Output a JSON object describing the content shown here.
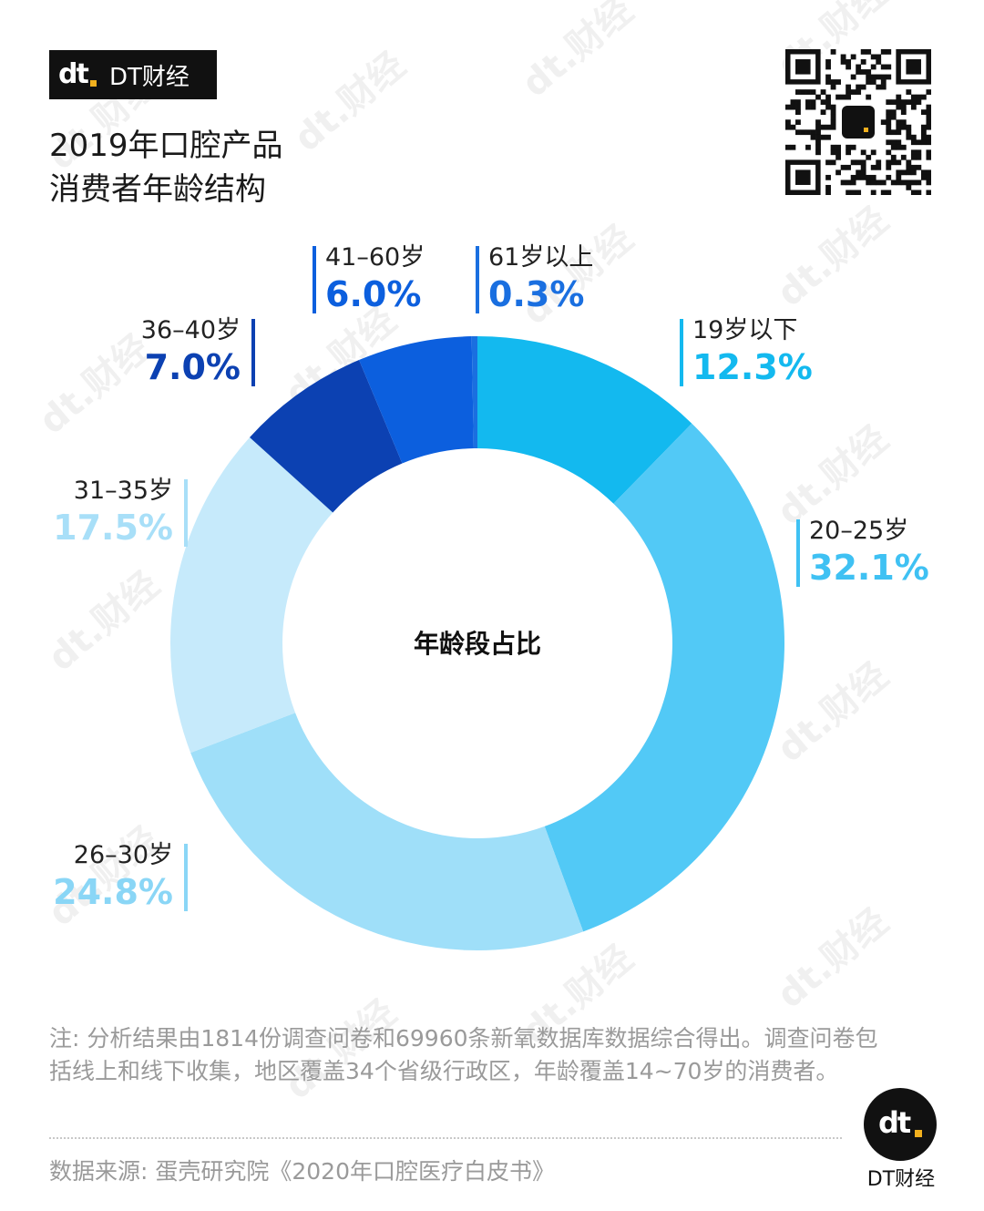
{
  "brand": {
    "name": "DT财经",
    "logo_mark": "dt"
  },
  "title": {
    "line1": "2019年口腔产品",
    "line2": "消费者年龄结构"
  },
  "watermark_text": "dt.财经",
  "colors": {
    "label_dark": "#222222",
    "bar_19": "#13b9ef",
    "bar_20": "#52c9f6",
    "bar_26": "#9fdff9",
    "bar_31": "#c6eafb",
    "bar_36": "#0c41b2",
    "bar_41": "#0c5fde",
    "bar_61": "#1a6fe0"
  },
  "chart_data": {
    "type": "pie",
    "variant": "donut",
    "center_label": "年龄段占比",
    "slices": [
      {
        "label": "19岁以下",
        "value": 12.3,
        "display": "12.3%",
        "color": "#13b9ef",
        "text_color": "#13b9ef"
      },
      {
        "label": "20–25岁",
        "value": 32.1,
        "display": "32.1%",
        "color": "#52c9f6",
        "text_color": "#3fc1f3"
      },
      {
        "label": "26–30岁",
        "value": 24.8,
        "display": "24.8%",
        "color": "#9fdff9",
        "text_color": "#8ad6f6"
      },
      {
        "label": "31–35岁",
        "value": 17.5,
        "display": "17.5%",
        "color": "#c6eafb",
        "text_color": "#a8dff8"
      },
      {
        "label": "36–40岁",
        "value": 7.0,
        "display": "7.0%",
        "color": "#0c41b2",
        "text_color": "#0c41b2"
      },
      {
        "label": "41–60岁",
        "value": 6.0,
        "display": "6.0%",
        "color": "#0c5fde",
        "text_color": "#0c5fde"
      },
      {
        "label": "61岁以上",
        "value": 0.3,
        "display": "0.3%",
        "color": "#1a6fe0",
        "text_color": "#1a6fe0"
      }
    ]
  },
  "note": "注: 分析结果由1814份调查问卷和69960条新氧数据库数据综合得出。调查问卷包括线上和线下收集，地区覆盖34个省级行政区，年龄覆盖14~70岁的消费者。",
  "source": "数据来源: 蛋壳研究院《2020年口腔医疗白皮书》",
  "badge": {
    "mark": "dt",
    "text": "DT财经"
  }
}
